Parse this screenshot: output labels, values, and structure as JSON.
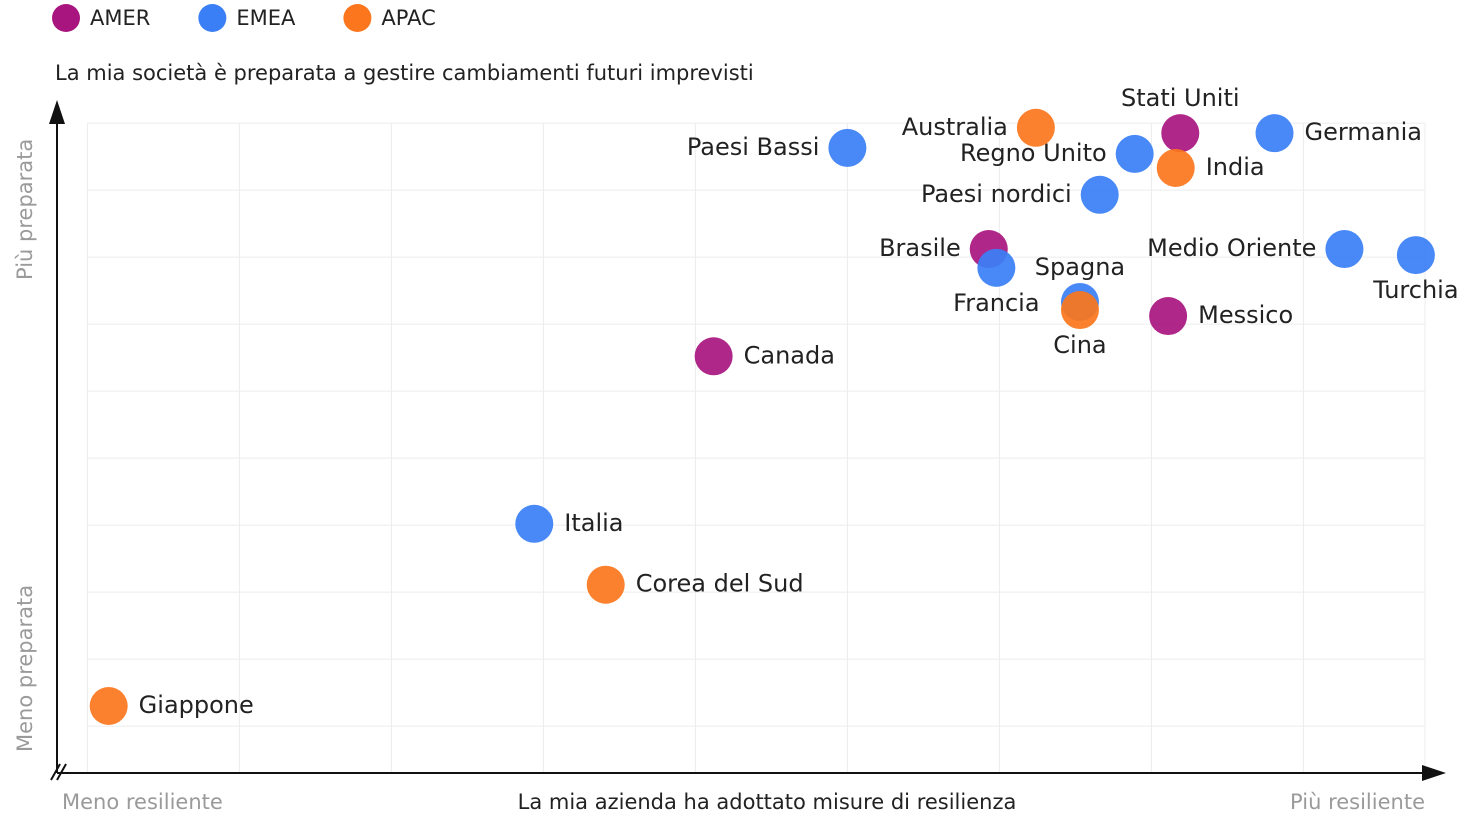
{
  "chart_data": {
    "type": "scatter",
    "y_axis_title": "La mia società è preparata a gestire cambiamenti futuri imprevisti",
    "x_axis_title": "La mia azienda ha adottato misure di resilienza",
    "x_low_label": "Meno resiliente",
    "x_high_label": "Più resiliente",
    "y_low_label": "Meno preparata",
    "y_high_label": "Più preparata",
    "xlim": [
      -0.2,
      8.8
    ],
    "ylim": [
      -0.7,
      9.3
    ],
    "xticks": [
      0,
      1,
      2,
      3,
      4,
      5,
      6,
      7,
      8
    ],
    "yticks": [
      0,
      1,
      2,
      3,
      4,
      5,
      6,
      7,
      8,
      9
    ],
    "grid": true,
    "legend": "top-left",
    "series": [
      {
        "name": "AMER",
        "color": "#a8157f",
        "labels": [
          "Stati Uniti",
          "Brasile",
          "Messico",
          "Canada"
        ],
        "x": [
          7.19,
          5.93,
          7.11,
          4.12
        ],
        "y": [
          8.85,
          7.12,
          6.12,
          5.52
        ]
      },
      {
        "name": "EMEA",
        "color": "#3a7ff6",
        "labels": [
          "Paesi Bassi",
          "Regno Unito",
          "Germania",
          "Paesi nordici",
          "Francia",
          "Spagna",
          "Medio Oriente",
          "Turchia",
          "Italia"
        ],
        "x": [
          5.0,
          6.89,
          7.81,
          6.66,
          5.98,
          6.53,
          8.27,
          8.74,
          2.94
        ],
        "y": [
          8.63,
          8.54,
          8.85,
          7.93,
          6.84,
          6.33,
          7.12,
          7.03,
          3.02
        ]
      },
      {
        "name": "APAC",
        "color": "#fb761c",
        "labels": [
          "Australia",
          "India",
          "Cina",
          "Corea del Sud",
          "Giappone"
        ],
        "x": [
          6.24,
          7.16,
          6.53,
          3.41,
          0.14
        ],
        "y": [
          8.93,
          8.33,
          6.21,
          2.11,
          0.3
        ]
      }
    ]
  }
}
